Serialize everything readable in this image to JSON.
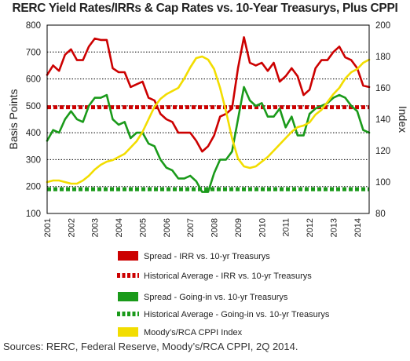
{
  "chart_data": {
    "type": "line",
    "title": "RERC Yield Rates/IRRs & Cap Rates vs. 10-Year Treasurys, Plus CPPI",
    "ylabel": "Basis Points",
    "y2label": "Index",
    "ylim": [
      100,
      800
    ],
    "y2lim": [
      80,
      200
    ],
    "y_ticks": [
      "100",
      "200",
      "300",
      "400",
      "500",
      "600",
      "700",
      "800"
    ],
    "y2_ticks": [
      "80",
      "100",
      "120",
      "140",
      "160",
      "180",
      "200"
    ],
    "x_ticks": [
      "2001",
      "2002",
      "2003",
      "2004",
      "2005",
      "2006",
      "2007",
      "2008",
      "2009",
      "2010",
      "2011",
      "2012",
      "2013",
      "2014"
    ],
    "xlim": [
      2001,
      2014.5
    ],
    "grid": "horizontal-dotted",
    "legend_position": "bottom",
    "series": [
      {
        "name": "Spread - IRR vs. 10-yr Treasurys",
        "axis": "left",
        "color": "#cc0000",
        "style": "solid",
        "x": [
          2001.0,
          2001.25,
          2001.5,
          2001.75,
          2002.0,
          2002.25,
          2002.5,
          2002.75,
          2003.0,
          2003.25,
          2003.5,
          2003.75,
          2004.0,
          2004.25,
          2004.5,
          2004.75,
          2005.0,
          2005.25,
          2005.5,
          2005.75,
          2006.0,
          2006.25,
          2006.5,
          2006.75,
          2007.0,
          2007.25,
          2007.5,
          2007.75,
          2008.0,
          2008.25,
          2008.5,
          2008.75,
          2009.0,
          2009.25,
          2009.5,
          2009.75,
          2010.0,
          2010.25,
          2010.5,
          2010.75,
          2011.0,
          2011.25,
          2011.5,
          2011.75,
          2012.0,
          2012.25,
          2012.5,
          2012.75,
          2013.0,
          2013.25,
          2013.5,
          2013.75,
          2014.0,
          2014.25,
          2014.5
        ],
        "values": [
          615,
          650,
          630,
          690,
          710,
          670,
          670,
          720,
          750,
          745,
          745,
          640,
          625,
          625,
          570,
          580,
          590,
          530,
          520,
          470,
          450,
          440,
          400,
          400,
          400,
          370,
          330,
          350,
          390,
          460,
          470,
          490,
          640,
          755,
          660,
          650,
          660,
          630,
          660,
          590,
          610,
          640,
          610,
          540,
          560,
          640,
          670,
          670,
          700,
          720,
          680,
          670,
          640,
          575,
          570
        ]
      },
      {
        "name": "Historical Average - IRR vs. 10-yr Treasurys",
        "axis": "left",
        "color": "#cc0000",
        "style": "dashed",
        "value": 495
      },
      {
        "name": "Spread - Going-in vs. 10-yr Treasurys",
        "axis": "left",
        "color": "#1a9a1a",
        "style": "solid",
        "x": [
          2001.0,
          2001.25,
          2001.5,
          2001.75,
          2002.0,
          2002.25,
          2002.5,
          2002.75,
          2003.0,
          2003.25,
          2003.5,
          2003.75,
          2004.0,
          2004.25,
          2004.5,
          2004.75,
          2005.0,
          2005.25,
          2005.5,
          2005.75,
          2006.0,
          2006.25,
          2006.5,
          2006.75,
          2007.0,
          2007.25,
          2007.5,
          2007.75,
          2008.0,
          2008.25,
          2008.5,
          2008.75,
          2009.0,
          2009.25,
          2009.5,
          2009.75,
          2010.0,
          2010.25,
          2010.5,
          2010.75,
          2011.0,
          2011.25,
          2011.5,
          2011.75,
          2012.0,
          2012.25,
          2012.5,
          2012.75,
          2013.0,
          2013.25,
          2013.5,
          2013.75,
          2014.0,
          2014.25,
          2014.5
        ],
        "values": [
          370,
          410,
          400,
          450,
          480,
          450,
          440,
          500,
          530,
          530,
          540,
          450,
          430,
          440,
          380,
          400,
          400,
          360,
          350,
          300,
          270,
          260,
          230,
          230,
          240,
          220,
          180,
          180,
          250,
          300,
          300,
          330,
          450,
          570,
          520,
          500,
          510,
          460,
          460,
          490,
          420,
          460,
          390,
          390,
          470,
          490,
          500,
          510,
          530,
          540,
          530,
          500,
          480,
          410,
          400
        ]
      },
      {
        "name": "Historical Average - Going-in vs. 10-yr Treasurys",
        "axis": "left",
        "color": "#1a9a1a",
        "style": "dashed",
        "value": 190
      },
      {
        "name": "Moody’s/RCA CPPI Index",
        "axis": "right",
        "color": "#f2dd00",
        "style": "solid",
        "x": [
          2001.0,
          2001.25,
          2001.5,
          2001.75,
          2002.0,
          2002.25,
          2002.5,
          2002.75,
          2003.0,
          2003.25,
          2003.5,
          2003.75,
          2004.0,
          2004.25,
          2004.5,
          2004.75,
          2005.0,
          2005.25,
          2005.5,
          2005.75,
          2006.0,
          2006.25,
          2006.5,
          2006.75,
          2007.0,
          2007.25,
          2007.5,
          2007.75,
          2008.0,
          2008.25,
          2008.5,
          2008.75,
          2009.0,
          2009.25,
          2009.5,
          2009.75,
          2010.0,
          2010.25,
          2010.5,
          2010.75,
          2011.0,
          2011.25,
          2011.5,
          2011.75,
          2012.0,
          2012.25,
          2012.5,
          2012.75,
          2013.0,
          2013.25,
          2013.5,
          2013.75,
          2014.0,
          2014.25,
          2014.5
        ],
        "values": [
          100,
          101,
          101,
          100,
          99,
          99,
          101,
          104,
          108,
          111,
          113,
          114,
          116,
          118,
          122,
          126,
          132,
          140,
          148,
          153,
          156,
          158,
          160,
          166,
          173,
          179,
          180,
          178,
          172,
          160,
          145,
          128,
          115,
          110,
          109,
          110,
          113,
          116,
          120,
          124,
          128,
          132,
          135,
          136,
          138,
          143,
          146,
          151,
          156,
          160,
          166,
          170,
          172,
          176,
          178
        ]
      }
    ],
    "source": "Sources: RERC, Federal Reserve, Moody’s/RCA CPPI, 2Q 2014."
  }
}
